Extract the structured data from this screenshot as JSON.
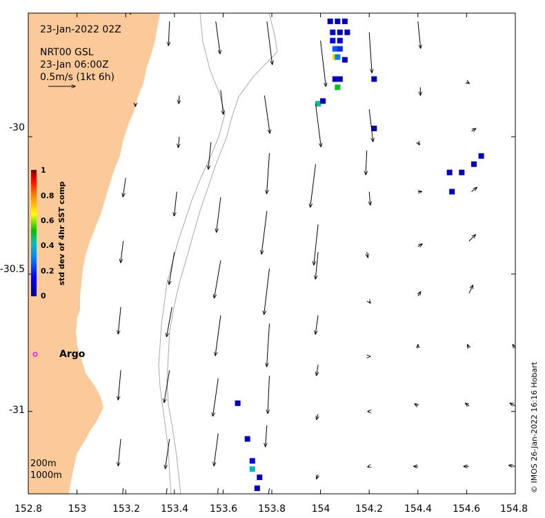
{
  "map": {
    "date_label": "23-Jan-2022 02Z",
    "product_label": "NRT00 GSL",
    "valid_label": "23-Jan 06:00Z",
    "scale_label": "0.5m/s (1kt 6h)",
    "x_ticks": [
      "152.8",
      "153",
      "153.2",
      "153.4",
      "153.6",
      "153.8",
      "154",
      "154.2",
      "154.4",
      "154.6",
      "154.8"
    ],
    "y_ticks": [
      "-30",
      "-30.5",
      "-31"
    ],
    "y_tick_values": [
      -30,
      -30.5,
      -31
    ],
    "extent": {
      "lon_min": 152.8,
      "lon_max": 154.8,
      "lat_min": -31.3,
      "lat_max": -29.55
    },
    "argo_label": "Argo",
    "isobath_labels": [
      "200m",
      "1000m"
    ],
    "credit": "© IMOS 26-Jan-2022 16:16 Hobart",
    "land_color": "#fcca98",
    "argo_color": "#ff00ff"
  },
  "colorbar": {
    "title": "std dev of 4hr SST comp",
    "ticks": [
      "0",
      "0.2",
      "0.4",
      "0.6",
      "0.8",
      "1"
    ],
    "range": [
      0,
      1
    ]
  },
  "chart_data": {
    "type": "heatmap",
    "title": "",
    "xlabel": "",
    "ylabel": "",
    "xlim": [
      152.8,
      154.8
    ],
    "ylim": [
      -31.3,
      -29.55
    ],
    "colorbar_label": "std dev of 4hr SST comp",
    "colorbar_range": [
      0,
      1
    ],
    "argo_float": {
      "lon": 152.83,
      "lat": -30.8,
      "label": "Argo"
    },
    "sst_std_cells": [
      {
        "lon": 154.04,
        "lat": -29.58,
        "value": 0.05
      },
      {
        "lon": 154.07,
        "lat": -29.58,
        "value": 0.05
      },
      {
        "lon": 154.1,
        "lat": -29.58,
        "value": 0.05
      },
      {
        "lon": 154.05,
        "lat": -29.62,
        "value": 0.1
      },
      {
        "lon": 154.08,
        "lat": -29.62,
        "value": 0.05
      },
      {
        "lon": 154.11,
        "lat": -29.62,
        "value": 0.05
      },
      {
        "lon": 154.05,
        "lat": -29.65,
        "value": 0.15
      },
      {
        "lon": 154.08,
        "lat": -29.65,
        "value": 0.1
      },
      {
        "lon": 154.06,
        "lat": -29.68,
        "value": 0.25
      },
      {
        "lon": 154.08,
        "lat": -29.68,
        "value": 0.2
      },
      {
        "lon": 154.06,
        "lat": -29.71,
        "value": 0.7
      },
      {
        "lon": 154.07,
        "lat": -29.71,
        "value": 0.3
      },
      {
        "lon": 154.1,
        "lat": -29.72,
        "value": 0.05
      },
      {
        "lon": 154.06,
        "lat": -29.79,
        "value": 0.05
      },
      {
        "lon": 154.08,
        "lat": -29.79,
        "value": 0.05
      },
      {
        "lon": 154.07,
        "lat": -29.82,
        "value": 0.5
      },
      {
        "lon": 154.22,
        "lat": -29.79,
        "value": 0.05
      },
      {
        "lon": 153.99,
        "lat": -29.88,
        "value": 0.45
      },
      {
        "lon": 154.01,
        "lat": -29.87,
        "value": 0.05
      },
      {
        "lon": 154.22,
        "lat": -29.97,
        "value": 0.05
      },
      {
        "lon": 154.66,
        "lat": -30.07,
        "value": 0.05
      },
      {
        "lon": 154.63,
        "lat": -30.1,
        "value": 0.05
      },
      {
        "lon": 154.53,
        "lat": -30.13,
        "value": 0.05
      },
      {
        "lon": 154.58,
        "lat": -30.13,
        "value": 0.05
      },
      {
        "lon": 154.54,
        "lat": -30.2,
        "value": 0.05
      },
      {
        "lon": 153.66,
        "lat": -30.97,
        "value": 0.05
      },
      {
        "lon": 153.7,
        "lat": -31.1,
        "value": 0.05
      },
      {
        "lon": 153.72,
        "lat": -31.18,
        "value": 0.1
      },
      {
        "lon": 153.72,
        "lat": -31.21,
        "value": 0.4
      },
      {
        "lon": 153.75,
        "lat": -31.24,
        "value": 0.05
      },
      {
        "lon": 153.74,
        "lat": -31.28,
        "value": 0.05
      }
    ],
    "current_vectors": [
      {
        "lon": 153.22,
        "lat": -29.55,
        "u": -0.0,
        "v": -0.02
      },
      {
        "lon": 153.38,
        "lat": -29.58,
        "u": -0.02,
        "v": -0.45
      },
      {
        "lon": 153.57,
        "lat": -29.58,
        "u": 0.08,
        "v": -0.6
      },
      {
        "lon": 153.78,
        "lat": -29.58,
        "u": 0.1,
        "v": -0.8
      },
      {
        "lon": 154.0,
        "lat": -29.65,
        "u": 0.1,
        "v": -0.85
      },
      {
        "lon": 154.2,
        "lat": -29.62,
        "u": 0.05,
        "v": -0.75
      },
      {
        "lon": 154.4,
        "lat": -29.58,
        "u": 0.05,
        "v": -0.5
      },
      {
        "lon": 153.24,
        "lat": -29.88,
        "u": 0.0,
        "v": -0.05
      },
      {
        "lon": 153.42,
        "lat": -29.85,
        "u": -0.01,
        "v": -0.15
      },
      {
        "lon": 153.59,
        "lat": -29.83,
        "u": 0.05,
        "v": -0.45
      },
      {
        "lon": 153.77,
        "lat": -29.85,
        "u": 0.1,
        "v": -0.7
      },
      {
        "lon": 153.98,
        "lat": -29.88,
        "u": 0.1,
        "v": -0.8
      },
      {
        "lon": 154.2,
        "lat": -29.9,
        "u": 0.07,
        "v": -0.6
      },
      {
        "lon": 154.41,
        "lat": -29.82,
        "u": 0.0,
        "v": -0.15
      },
      {
        "lon": 154.6,
        "lat": -29.8,
        "u": 0.05,
        "v": -0.03
      },
      {
        "lon": 153.42,
        "lat": -30.0,
        "u": -0.02,
        "v": -0.2
      },
      {
        "lon": 153.55,
        "lat": -30.02,
        "u": -0.05,
        "v": -0.5
      },
      {
        "lon": 153.79,
        "lat": -30.06,
        "u": -0.05,
        "v": -0.75
      },
      {
        "lon": 153.98,
        "lat": -30.1,
        "u": -0.1,
        "v": -0.8
      },
      {
        "lon": 154.19,
        "lat": -30.05,
        "u": -0.02,
        "v": -0.45
      },
      {
        "lon": 154.4,
        "lat": -30.02,
        "u": 0.03,
        "v": -0.05
      },
      {
        "lon": 154.62,
        "lat": -29.98,
        "u": 0.08,
        "v": 0.05
      },
      {
        "lon": 153.2,
        "lat": -30.15,
        "u": -0.05,
        "v": -0.35
      },
      {
        "lon": 153.41,
        "lat": -30.2,
        "u": -0.05,
        "v": -0.45
      },
      {
        "lon": 153.59,
        "lat": -30.22,
        "u": -0.08,
        "v": -0.65
      },
      {
        "lon": 153.78,
        "lat": -30.27,
        "u": -0.1,
        "v": -0.8
      },
      {
        "lon": 153.99,
        "lat": -30.32,
        "u": -0.08,
        "v": -0.75
      },
      {
        "lon": 154.2,
        "lat": -30.2,
        "u": 0.02,
        "v": -0.25
      },
      {
        "lon": 154.4,
        "lat": -30.2,
        "u": 0.07,
        "v": 0.0
      },
      {
        "lon": 154.62,
        "lat": -30.2,
        "u": 0.1,
        "v": 0.08
      },
      {
        "lon": 153.19,
        "lat": -30.38,
        "u": -0.05,
        "v": -0.4
      },
      {
        "lon": 153.4,
        "lat": -30.42,
        "u": -0.1,
        "v": -0.6
      },
      {
        "lon": 153.59,
        "lat": -30.45,
        "u": -0.12,
        "v": -0.7
      },
      {
        "lon": 153.79,
        "lat": -30.48,
        "u": -0.1,
        "v": -0.85
      },
      {
        "lon": 153.99,
        "lat": -30.42,
        "u": -0.05,
        "v": -0.5
      },
      {
        "lon": 154.19,
        "lat": -30.42,
        "u": 0.02,
        "v": -0.1
      },
      {
        "lon": 154.4,
        "lat": -30.4,
        "u": 0.08,
        "v": 0.05
      },
      {
        "lon": 154.61,
        "lat": -30.38,
        "u": 0.12,
        "v": 0.12
      },
      {
        "lon": 153.18,
        "lat": -30.62,
        "u": -0.05,
        "v": -0.5
      },
      {
        "lon": 153.39,
        "lat": -30.62,
        "u": -0.1,
        "v": -0.55
      },
      {
        "lon": 153.59,
        "lat": -30.65,
        "u": -0.1,
        "v": -0.75
      },
      {
        "lon": 153.79,
        "lat": -30.68,
        "u": -0.05,
        "v": -0.8
      },
      {
        "lon": 153.99,
        "lat": -30.65,
        "u": -0.05,
        "v": -0.35
      },
      {
        "lon": 154.2,
        "lat": -30.6,
        "u": 0.02,
        "v": -0.03
      },
      {
        "lon": 154.4,
        "lat": -30.58,
        "u": 0.05,
        "v": 0.08
      },
      {
        "lon": 154.61,
        "lat": -30.57,
        "u": 0.07,
        "v": 0.15
      },
      {
        "lon": 153.18,
        "lat": -30.85,
        "u": -0.05,
        "v": -0.55
      },
      {
        "lon": 153.38,
        "lat": -30.85,
        "u": -0.1,
        "v": -0.6
      },
      {
        "lon": 153.58,
        "lat": -30.88,
        "u": -0.1,
        "v": -0.7
      },
      {
        "lon": 153.79,
        "lat": -30.87,
        "u": -0.03,
        "v": -0.7
      },
      {
        "lon": 153.99,
        "lat": -30.83,
        "u": -0.03,
        "v": -0.2
      },
      {
        "lon": 154.2,
        "lat": -30.8,
        "u": 0.02,
        "v": 0.0
      },
      {
        "lon": 154.4,
        "lat": -30.77,
        "u": 0.0,
        "v": 0.07
      },
      {
        "lon": 154.61,
        "lat": -30.77,
        "u": -0.03,
        "v": 0.07
      },
      {
        "lon": 154.8,
        "lat": -30.77,
        "u": -0.05,
        "v": 0.07
      },
      {
        "lon": 153.18,
        "lat": -31.1,
        "u": -0.05,
        "v": -0.5
      },
      {
        "lon": 153.38,
        "lat": -31.1,
        "u": -0.08,
        "v": -0.55
      },
      {
        "lon": 153.58,
        "lat": -31.08,
        "u": -0.08,
        "v": -0.6
      },
      {
        "lon": 153.78,
        "lat": -31.05,
        "u": -0.03,
        "v": -0.4
      },
      {
        "lon": 153.99,
        "lat": -31.01,
        "u": -0.03,
        "v": -0.1
      },
      {
        "lon": 154.2,
        "lat": -31.0,
        "u": -0.03,
        "v": 0.0
      },
      {
        "lon": 154.4,
        "lat": -30.98,
        "u": -0.06,
        "v": 0.04
      },
      {
        "lon": 154.61,
        "lat": -30.98,
        "u": -0.07,
        "v": 0.05
      },
      {
        "lon": 154.8,
        "lat": -30.98,
        "u": -0.1,
        "v": 0.05
      },
      {
        "lon": 153.19,
        "lat": -31.28,
        "u": -0.05,
        "v": -0.4
      },
      {
        "lon": 153.37,
        "lat": -31.28,
        "u": -0.05,
        "v": -0.35
      },
      {
        "lon": 153.58,
        "lat": -31.28,
        "u": -0.04,
        "v": -0.4
      },
      {
        "lon": 153.79,
        "lat": -31.28,
        "u": -0.03,
        "v": -0.2
      },
      {
        "lon": 153.99,
        "lat": -31.23,
        "u": -0.03,
        "v": -0.08
      },
      {
        "lon": 154.2,
        "lat": -31.2,
        "u": -0.03,
        "v": -0.01
      },
      {
        "lon": 154.4,
        "lat": -31.2,
        "u": -0.08,
        "v": 0.0
      },
      {
        "lon": 154.61,
        "lat": -31.2,
        "u": -0.1,
        "v": 0.0
      },
      {
        "lon": 154.8,
        "lat": -31.2,
        "u": -0.12,
        "v": 0.02
      }
    ]
  }
}
